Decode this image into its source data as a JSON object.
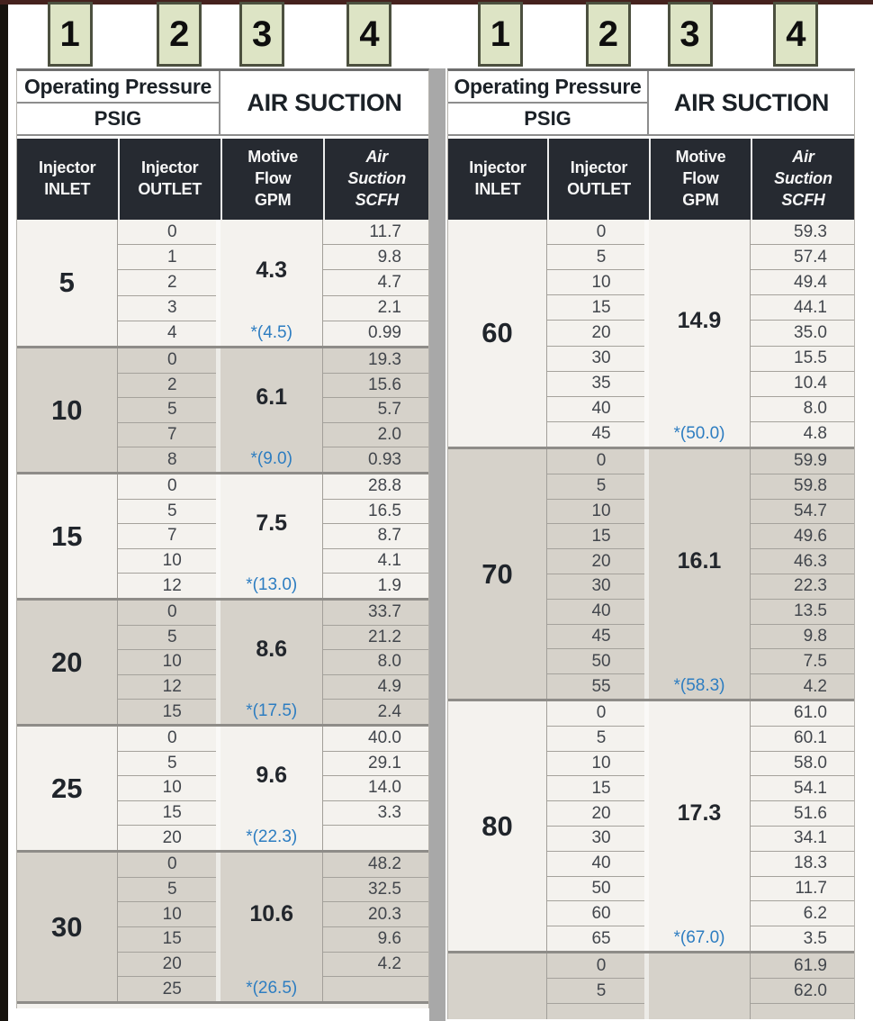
{
  "badges": [
    "1",
    "2",
    "3",
    "4"
  ],
  "header": {
    "group_left_title": "Operating Pressure",
    "group_left_sub": "PSIG",
    "group_right_title": "AIR SUCTION",
    "columns": [
      {
        "lines": [
          "Injector",
          "INLET"
        ]
      },
      {
        "lines": [
          "Injector",
          "OUTLET"
        ]
      },
      {
        "lines": [
          "Motive",
          "Flow",
          "GPM"
        ]
      },
      {
        "lines": [
          "Air",
          "Suction",
          "SCFH"
        ],
        "italic": true
      }
    ]
  },
  "colors": {
    "badge_bg": "#dde4c5",
    "badge_border": "#4c503f",
    "dark_header_bg": "#262a31",
    "light_band": "#f4f2ee",
    "dark_band": "#d6d2ca",
    "note_blue": "#2d7dc1",
    "top_rule_maroon": "#45221e",
    "left_bar_black": "#17130e",
    "separator_gray": "#a8a8a8"
  },
  "tables": [
    {
      "groups": [
        {
          "inlet": "5",
          "flow": "4.3",
          "flow_note": "*(4.5)",
          "shade": "light",
          "rows": [
            {
              "outlet": "0",
              "suction": "11.7"
            },
            {
              "outlet": "1",
              "suction": "9.8"
            },
            {
              "outlet": "2",
              "suction": "4.7"
            },
            {
              "outlet": "3",
              "suction": "2.1"
            },
            {
              "outlet": "4",
              "suction": "0.99"
            }
          ]
        },
        {
          "inlet": "10",
          "flow": "6.1",
          "flow_note": "*(9.0)",
          "shade": "dark",
          "rows": [
            {
              "outlet": "0",
              "suction": "19.3"
            },
            {
              "outlet": "2",
              "suction": "15.6"
            },
            {
              "outlet": "5",
              "suction": "5.7"
            },
            {
              "outlet": "7",
              "suction": "2.0"
            },
            {
              "outlet": "8",
              "suction": "0.93"
            }
          ]
        },
        {
          "inlet": "15",
          "flow": "7.5",
          "flow_note": "*(13.0)",
          "shade": "light",
          "rows": [
            {
              "outlet": "0",
              "suction": "28.8"
            },
            {
              "outlet": "5",
              "suction": "16.5"
            },
            {
              "outlet": "7",
              "suction": "8.7"
            },
            {
              "outlet": "10",
              "suction": "4.1"
            },
            {
              "outlet": "12",
              "suction": "1.9"
            }
          ]
        },
        {
          "inlet": "20",
          "flow": "8.6",
          "flow_note": "*(17.5)",
          "shade": "dark",
          "rows": [
            {
              "outlet": "0",
              "suction": "33.7"
            },
            {
              "outlet": "5",
              "suction": "21.2"
            },
            {
              "outlet": "10",
              "suction": "8.0"
            },
            {
              "outlet": "12",
              "suction": "4.9"
            },
            {
              "outlet": "15",
              "suction": "2.4"
            }
          ]
        },
        {
          "inlet": "25",
          "flow": "9.6",
          "flow_note": "*(22.3)",
          "shade": "light",
          "rows": [
            {
              "outlet": "0",
              "suction": "40.0"
            },
            {
              "outlet": "5",
              "suction": "29.1"
            },
            {
              "outlet": "10",
              "suction": "14.0"
            },
            {
              "outlet": "15",
              "suction": "3.3"
            },
            {
              "outlet": "20",
              "suction": ""
            }
          ]
        },
        {
          "inlet": "30",
          "flow": "10.6",
          "flow_note": "*(26.5)",
          "shade": "dark",
          "rows": [
            {
              "outlet": "0",
              "suction": "48.2"
            },
            {
              "outlet": "5",
              "suction": "32.5"
            },
            {
              "outlet": "10",
              "suction": "20.3"
            },
            {
              "outlet": "15",
              "suction": "9.6"
            },
            {
              "outlet": "20",
              "suction": "4.2"
            },
            {
              "outlet": "25",
              "suction": ""
            }
          ]
        },
        {
          "inlet": "",
          "flow": "",
          "flow_note": "",
          "shade": "light",
          "rows": []
        }
      ]
    },
    {
      "groups": [
        {
          "inlet": "60",
          "flow": "14.9",
          "flow_note": "*(50.0)",
          "shade": "light",
          "rows": [
            {
              "outlet": "0",
              "suction": "59.3"
            },
            {
              "outlet": "5",
              "suction": "57.4"
            },
            {
              "outlet": "10",
              "suction": "49.4"
            },
            {
              "outlet": "15",
              "suction": "44.1"
            },
            {
              "outlet": "20",
              "suction": "35.0"
            },
            {
              "outlet": "30",
              "suction": "15.5"
            },
            {
              "outlet": "35",
              "suction": "10.4"
            },
            {
              "outlet": "40",
              "suction": "8.0"
            },
            {
              "outlet": "45",
              "suction": "4.8"
            }
          ]
        },
        {
          "inlet": "70",
          "flow": "16.1",
          "flow_note": "*(58.3)",
          "shade": "dark",
          "rows": [
            {
              "outlet": "0",
              "suction": "59.9"
            },
            {
              "outlet": "5",
              "suction": "59.8"
            },
            {
              "outlet": "10",
              "suction": "54.7"
            },
            {
              "outlet": "15",
              "suction": "49.6"
            },
            {
              "outlet": "20",
              "suction": "46.3"
            },
            {
              "outlet": "30",
              "suction": "22.3"
            },
            {
              "outlet": "40",
              "suction": "13.5"
            },
            {
              "outlet": "45",
              "suction": "9.8"
            },
            {
              "outlet": "50",
              "suction": "7.5"
            },
            {
              "outlet": "55",
              "suction": "4.2"
            }
          ]
        },
        {
          "inlet": "80",
          "flow": "17.3",
          "flow_note": "*(67.0)",
          "shade": "light",
          "rows": [
            {
              "outlet": "0",
              "suction": "61.0"
            },
            {
              "outlet": "5",
              "suction": "60.1"
            },
            {
              "outlet": "10",
              "suction": "58.0"
            },
            {
              "outlet": "15",
              "suction": "54.1"
            },
            {
              "outlet": "20",
              "suction": "51.6"
            },
            {
              "outlet": "30",
              "suction": "34.1"
            },
            {
              "outlet": "40",
              "suction": "18.3"
            },
            {
              "outlet": "50",
              "suction": "11.7"
            },
            {
              "outlet": "60",
              "suction": "6.2"
            },
            {
              "outlet": "65",
              "suction": "3.5"
            }
          ]
        },
        {
          "inlet": "",
          "flow": "",
          "flow_note": "",
          "shade": "dark",
          "partial": true,
          "rows": [
            {
              "outlet": "0",
              "suction": "61.9"
            },
            {
              "outlet": "5",
              "suction": "62.0"
            }
          ]
        }
      ]
    }
  ]
}
